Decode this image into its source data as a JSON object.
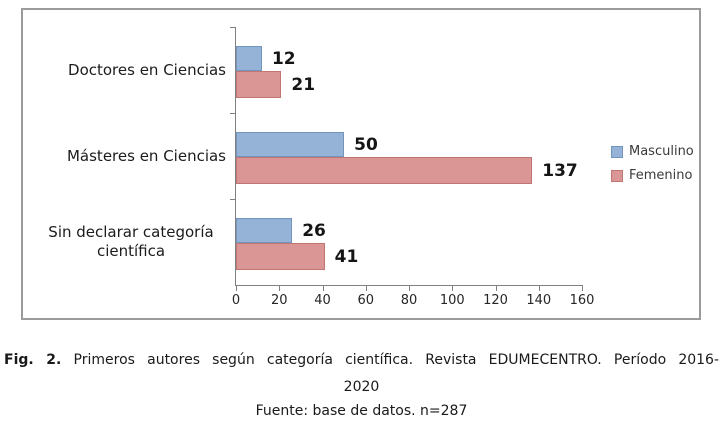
{
  "chart_data": {
    "type": "bar",
    "orientation": "horizontal",
    "title": "",
    "categories": [
      "Doctores en Ciencias",
      "Másteres en Ciencias",
      "Sin declarar categoría científica"
    ],
    "series": [
      {
        "name": "Masculino",
        "color": "#95B3D7",
        "border_color": "#7295BE",
        "values": [
          12,
          50,
          26
        ]
      },
      {
        "name": "Femenino",
        "color": "#D99694",
        "border_color": "#C27673",
        "values": [
          21,
          137,
          41
        ]
      }
    ],
    "xlim": [
      0,
      160
    ],
    "x_ticks": [
      0,
      20,
      40,
      60,
      80,
      100,
      120,
      140,
      160
    ],
    "grid": false,
    "data_labels": true,
    "legend_position": "right",
    "axis_color": "#808080"
  },
  "caption": {
    "fig_label": "Fig. 2.",
    "line1_rest": "Primeros autores según categoría científica. Revista EDUMECENTRO. Período 2016-",
    "line2": "2020",
    "line3": "Fuente: base de datos. n=287"
  }
}
